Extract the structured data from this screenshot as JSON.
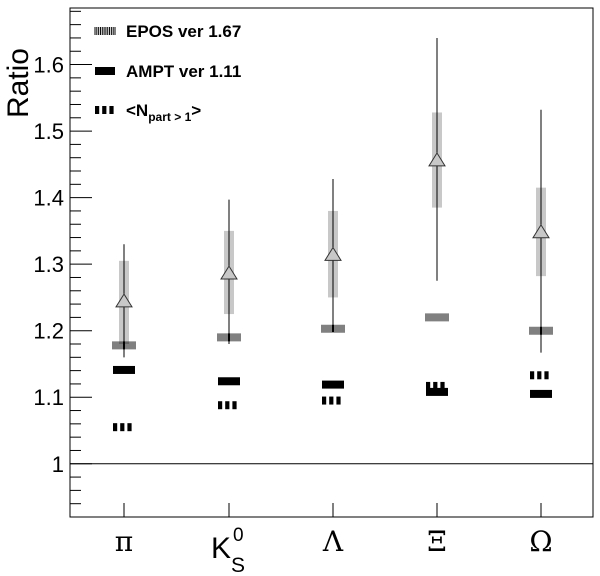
{
  "chart_data": {
    "type": "scatter",
    "ylabel": "Ratio",
    "ylim": [
      0.92,
      1.685
    ],
    "reference_line": 1.0,
    "yticks": [
      "1",
      "1.1",
      "1.2",
      "1.3",
      "1.4",
      "1.5",
      "1.6"
    ],
    "categories": [
      {
        "base": "π",
        "sup": "",
        "sub": ""
      },
      {
        "base": "K",
        "sup": "0",
        "sub": "S"
      },
      {
        "base": "Λ",
        "sup": "",
        "sub": ""
      },
      {
        "base": "Ξ",
        "sup": "",
        "sub": ""
      },
      {
        "base": "Ω",
        "sup": "",
        "sub": ""
      }
    ],
    "data_points": [
      {
        "value": 1.243,
        "stat_low": 1.16,
        "stat_high": 1.33,
        "sys_low": 1.18,
        "sys_high": 1.305
      },
      {
        "value": 1.285,
        "stat_low": 1.18,
        "stat_high": 1.397,
        "sys_low": 1.225,
        "sys_high": 1.35
      },
      {
        "value": 1.313,
        "stat_low": 1.198,
        "stat_high": 1.428,
        "sys_low": 1.25,
        "sys_high": 1.38
      },
      {
        "value": 1.455,
        "stat_low": 1.275,
        "stat_high": 1.64,
        "sys_low": 1.385,
        "sys_high": 1.528
      },
      {
        "value": 1.347,
        "stat_low": 1.167,
        "stat_high": 1.532,
        "sys_low": 1.282,
        "sys_high": 1.415
      }
    ],
    "series": [
      {
        "name": "EPOS ver 1.67",
        "style": "hatched",
        "values": [
          1.178,
          1.19,
          1.203,
          1.22,
          1.2
        ]
      },
      {
        "name": "AMPT ver 1.11",
        "style": "solid",
        "values": [
          1.141,
          1.124,
          1.119,
          1.108,
          1.105
        ]
      },
      {
        "name": "<N",
        "name_sub": "part > 1",
        "name_end": ">",
        "style": "dashed",
        "values": [
          1.055,
          1.088,
          1.095,
          1.117,
          1.133
        ]
      }
    ],
    "legend_position": "top-left",
    "grid": false,
    "colors": {
      "axis": "#000000",
      "sys_box": "#c8c8c8",
      "marker_fill": "#c8c8c8",
      "marker_stroke": "#333333"
    }
  }
}
